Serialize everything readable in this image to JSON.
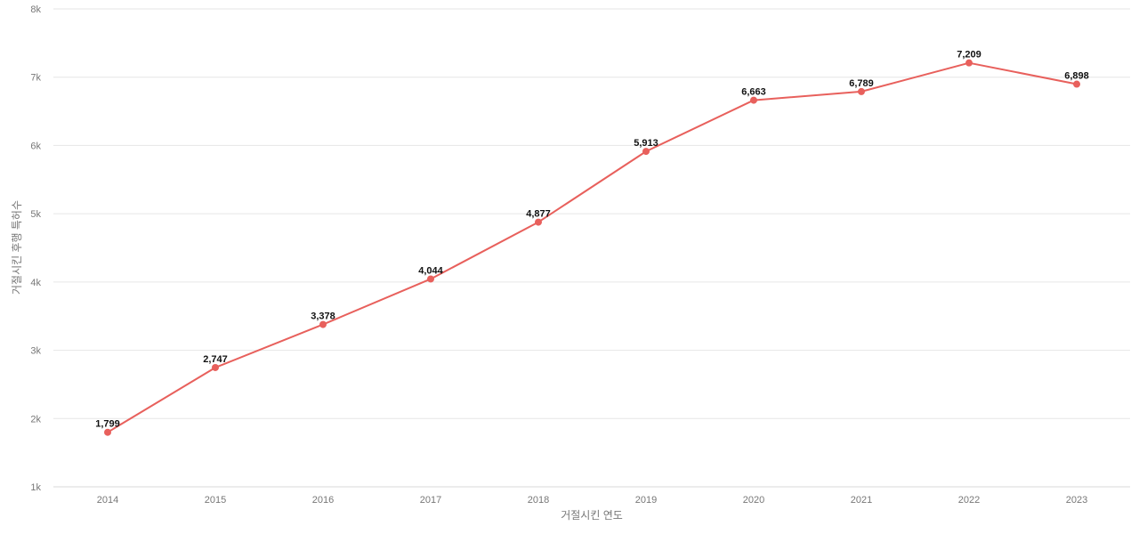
{
  "chart_data": {
    "type": "line",
    "title": "",
    "xlabel": "거절시킨 연도",
    "ylabel": "거절시킨 후행 특허수",
    "x": [
      "2014",
      "2015",
      "2016",
      "2017",
      "2018",
      "2019",
      "2020",
      "2021",
      "2022",
      "2023"
    ],
    "series": [
      {
        "values": [
          1799,
          2747,
          3378,
          4044,
          4877,
          5913,
          6663,
          6789,
          7209,
          6898
        ],
        "labels": [
          "1,799",
          "2,747",
          "3,378",
          "4,044",
          "4,877",
          "5,913",
          "6,663",
          "6,789",
          "7,209",
          "6,898"
        ],
        "color": "#e8605c"
      }
    ],
    "ylim": [
      1000,
      8000
    ],
    "yticks": [
      1000,
      2000,
      3000,
      4000,
      5000,
      6000,
      7000,
      8000
    ],
    "ytick_labels": [
      "1k",
      "2k",
      "3k",
      "4k",
      "5k",
      "6k",
      "7k",
      "8k"
    ],
    "grid": true,
    "legend": "none"
  }
}
